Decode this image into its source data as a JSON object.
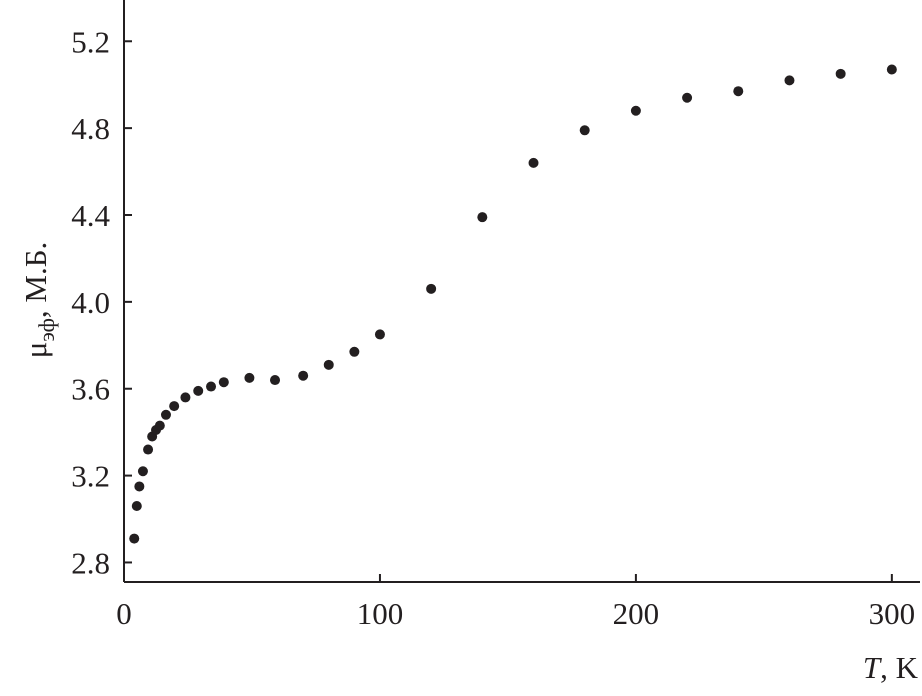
{
  "chart_data": {
    "type": "scatter",
    "xlabel": {
      "symbol": "T",
      "unit": ", K"
    },
    "ylabel": {
      "symbol": "μ",
      "subscript": "эф",
      "unit": ", М.Б."
    },
    "x": [
      4,
      5,
      6,
      7.4,
      9.4,
      11,
      12.5,
      14,
      16.4,
      19.6,
      24,
      29,
      34,
      39,
      49,
      59,
      70,
      80,
      90,
      100,
      120,
      140,
      160,
      180,
      200,
      220,
      240,
      260,
      280,
      300
    ],
    "values": [
      2.91,
      3.06,
      3.15,
      3.22,
      3.32,
      3.38,
      3.41,
      3.43,
      3.48,
      3.52,
      3.56,
      3.59,
      3.61,
      3.63,
      3.65,
      3.64,
      3.66,
      3.71,
      3.77,
      3.85,
      4.06,
      4.39,
      4.64,
      4.79,
      4.88,
      4.94,
      4.97,
      5.02,
      5.05,
      5.07
    ],
    "color": "#231f20",
    "xlim": [
      0,
      311
    ],
    "ylim": [
      2.71,
      5.39
    ],
    "xticks": [
      0,
      100,
      200,
      300
    ],
    "yticks": [
      2.8,
      3.2,
      3.6,
      {
        "value": 4,
        "label": "4.0"
      },
      4.4,
      4.8,
      5.2
    ]
  }
}
